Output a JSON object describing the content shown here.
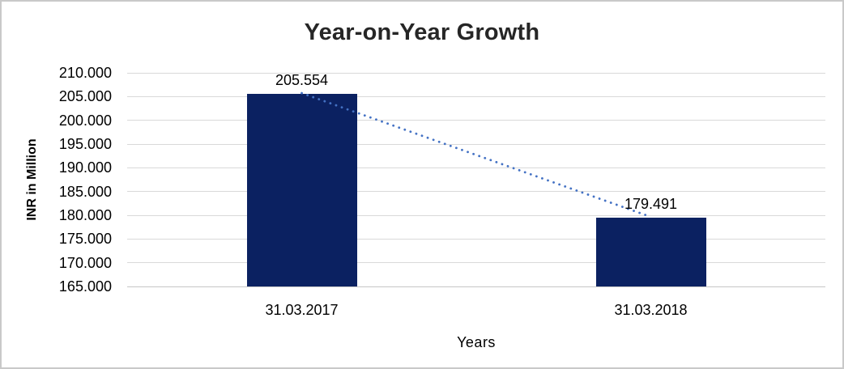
{
  "chart_data": {
    "type": "bar",
    "title": "Year-on-Year Growth",
    "xlabel": "Years",
    "ylabel": "INR in Million",
    "categories": [
      "31.03.2017",
      "31.03.2018"
    ],
    "values": [
      205.554,
      179.491
    ],
    "value_labels": [
      "205.554",
      "179.491"
    ],
    "ylim": [
      165,
      210
    ],
    "y_tick_step": 5,
    "y_tick_labels": [
      "210.000",
      "205.000",
      "200.000",
      "195.000",
      "190.000",
      "185.000",
      "180.000",
      "175.000",
      "170.000",
      "165.000"
    ],
    "grid": true,
    "legend": "none",
    "trendline": {
      "style": "dotted",
      "from_value": 205.554,
      "to_value": 179.491,
      "color": "#4472C4"
    },
    "colors": {
      "bar": "#0B2161",
      "gridline": "#D9D9D9",
      "baseline": "#C6C6C6",
      "title_text": "#262626",
      "axis_text": "#000000"
    }
  }
}
